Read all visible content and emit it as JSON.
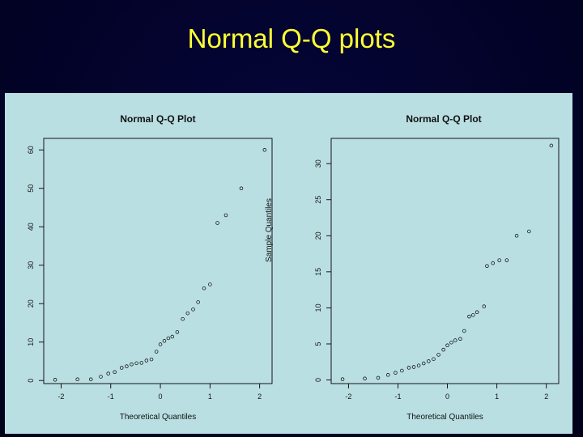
{
  "page_title": "Normal Q-Q plots",
  "chart_data": [
    {
      "type": "scatter",
      "title": "Normal Q-Q Plot",
      "xlabel": "Theoretical Quantiles",
      "ylabel": "",
      "xlim": [
        -2.35,
        2.25
      ],
      "ylim": [
        -0.8,
        63
      ],
      "xticks": [
        -2,
        -1,
        0,
        1,
        2
      ],
      "yticks": [
        0,
        10,
        20,
        30,
        40,
        50,
        60
      ],
      "points": [
        [
          -2.12,
          0.2
        ],
        [
          -1.67,
          0.3
        ],
        [
          -1.4,
          0.3
        ],
        [
          -1.2,
          1.0
        ],
        [
          -1.05,
          1.8
        ],
        [
          -0.92,
          2.2
        ],
        [
          -0.78,
          3.3
        ],
        [
          -0.68,
          3.7
        ],
        [
          -0.58,
          4.2
        ],
        [
          -0.48,
          4.5
        ],
        [
          -0.38,
          4.6
        ],
        [
          -0.28,
          5.2
        ],
        [
          -0.18,
          5.5
        ],
        [
          -0.08,
          7.5
        ],
        [
          0.0,
          9.4
        ],
        [
          0.08,
          10.3
        ],
        [
          0.16,
          11.0
        ],
        [
          0.24,
          11.4
        ],
        [
          0.34,
          12.6
        ],
        [
          0.45,
          16.0
        ],
        [
          0.55,
          17.5
        ],
        [
          0.66,
          18.5
        ],
        [
          0.76,
          20.4
        ],
        [
          0.88,
          24.0
        ],
        [
          1.0,
          25.0
        ],
        [
          1.15,
          41.0
        ],
        [
          1.32,
          43.0
        ],
        [
          1.63,
          50.0
        ],
        [
          2.1,
          60.0
        ]
      ]
    },
    {
      "type": "scatter",
      "title": "Normal Q-Q Plot",
      "xlabel": "Theoretical Quantiles",
      "ylabel": "Sample Quantiles",
      "xlim": [
        -2.35,
        2.25
      ],
      "ylim": [
        -0.5,
        33.5
      ],
      "xticks": [
        -2,
        -1,
        0,
        1,
        2
      ],
      "yticks": [
        0,
        5,
        10,
        15,
        20,
        25,
        30
      ],
      "points": [
        [
          -2.12,
          0.1
        ],
        [
          -1.67,
          0.2
        ],
        [
          -1.4,
          0.3
        ],
        [
          -1.2,
          0.7
        ],
        [
          -1.05,
          1.0
        ],
        [
          -0.92,
          1.3
        ],
        [
          -0.78,
          1.7
        ],
        [
          -0.68,
          1.8
        ],
        [
          -0.58,
          2.0
        ],
        [
          -0.48,
          2.3
        ],
        [
          -0.38,
          2.6
        ],
        [
          -0.28,
          2.9
        ],
        [
          -0.18,
          3.5
        ],
        [
          -0.08,
          4.2
        ],
        [
          0.0,
          4.8
        ],
        [
          0.08,
          5.2
        ],
        [
          0.16,
          5.5
        ],
        [
          0.26,
          5.7
        ],
        [
          0.34,
          6.8
        ],
        [
          0.44,
          8.8
        ],
        [
          0.52,
          9.0
        ],
        [
          0.6,
          9.4
        ],
        [
          0.74,
          10.2
        ],
        [
          0.8,
          15.8
        ],
        [
          0.92,
          16.2
        ],
        [
          1.05,
          16.6
        ],
        [
          1.2,
          16.6
        ],
        [
          1.4,
          20.0
        ],
        [
          1.65,
          20.6
        ],
        [
          2.1,
          32.5
        ]
      ]
    }
  ]
}
